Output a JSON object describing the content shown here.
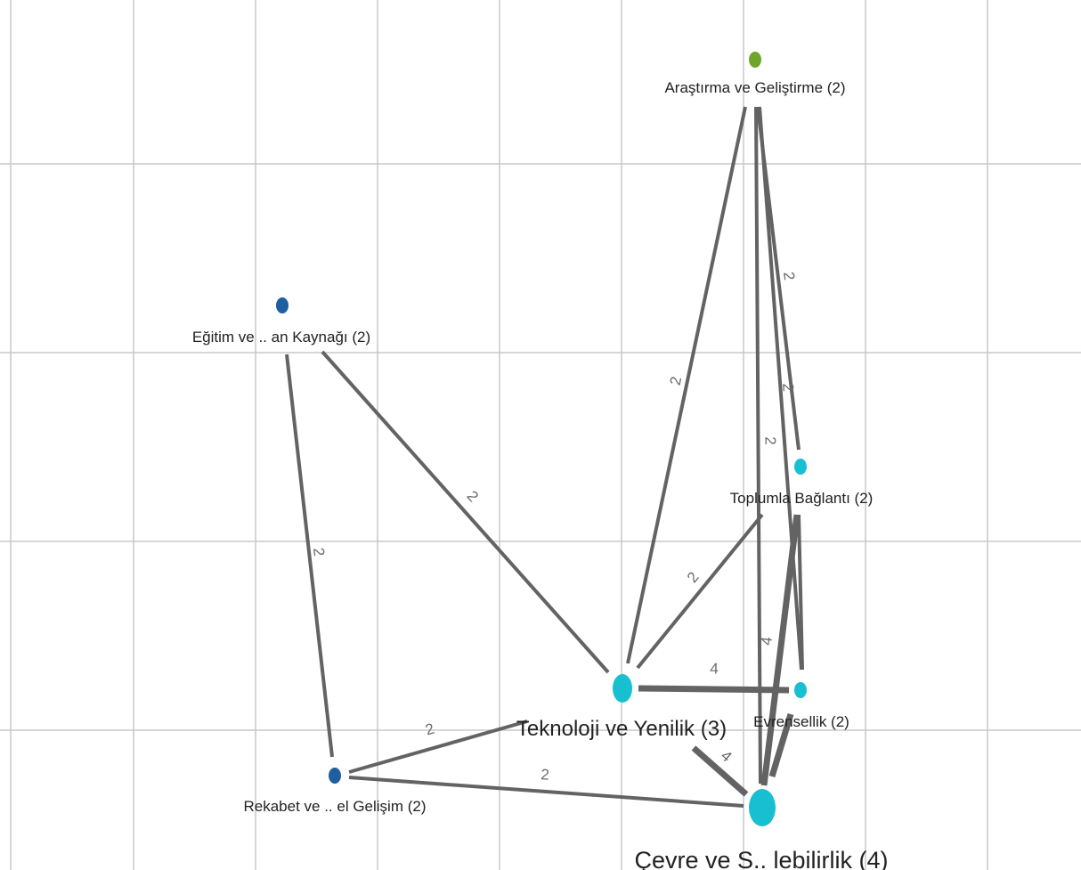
{
  "colors": {
    "grid": "#c8c8c8",
    "edge": "#636363",
    "edge_label": "#6a6a6a",
    "node_label": "#222222"
  },
  "nodes": [
    {
      "id": "arastirma",
      "label": "Araştırma ve Geliştirme (2)",
      "color": "#6fa52b",
      "size": "small"
    },
    {
      "id": "egitim",
      "label": "Eğitim ve .. an Kaynağı (2)",
      "color": "#1f5fa0",
      "size": "small"
    },
    {
      "id": "toplumla",
      "label": "Toplumla Bağlantı (2)",
      "color": "#17bfd0",
      "size": "small"
    },
    {
      "id": "teknoloji",
      "label": "Teknoloji ve Yenilik (3)",
      "color": "#17bfd0",
      "size": "medium"
    },
    {
      "id": "evrensellik",
      "label": "Evrensellik (2)",
      "color": "#17bfd0",
      "size": "small"
    },
    {
      "id": "rekabet",
      "label": "Rekabet ve .. el Gelişim (2)",
      "color": "#1f5fa0",
      "size": "small"
    },
    {
      "id": "cevre",
      "label": "Çevre ve S.. lebilirlik (4)",
      "color": "#17bfd0",
      "size": "large"
    }
  ],
  "edges": [
    {
      "from": "arastirma",
      "to": "teknoloji",
      "weight": 2,
      "label": "2"
    },
    {
      "from": "arastirma",
      "to": "toplumla",
      "weight": 2,
      "label": "2"
    },
    {
      "from": "arastirma",
      "to": "evrensellik",
      "weight": 2,
      "label": "2"
    },
    {
      "from": "arastirma",
      "to": "cevre",
      "weight": 2,
      "label": "2"
    },
    {
      "from": "egitim",
      "to": "teknoloji",
      "weight": 2,
      "label": "2"
    },
    {
      "from": "egitim",
      "to": "rekabet",
      "weight": 2,
      "label": "2"
    },
    {
      "from": "toplumla",
      "to": "teknoloji",
      "weight": 2,
      "label": "2"
    },
    {
      "from": "toplumla",
      "to": "evrensellik",
      "weight": 2,
      "label": ""
    },
    {
      "from": "toplumla",
      "to": "cevre",
      "weight": 4,
      "label": "4"
    },
    {
      "from": "teknoloji",
      "to": "evrensellik",
      "weight": 4,
      "label": "4"
    },
    {
      "from": "teknoloji",
      "to": "cevre",
      "weight": 4,
      "label": "4"
    },
    {
      "from": "teknoloji",
      "to": "rekabet",
      "weight": 2,
      "label": "2"
    },
    {
      "from": "evrensellik",
      "to": "cevre",
      "weight": 4,
      "label": ""
    },
    {
      "from": "rekabet",
      "to": "cevre",
      "weight": 2,
      "label": "2"
    }
  ]
}
